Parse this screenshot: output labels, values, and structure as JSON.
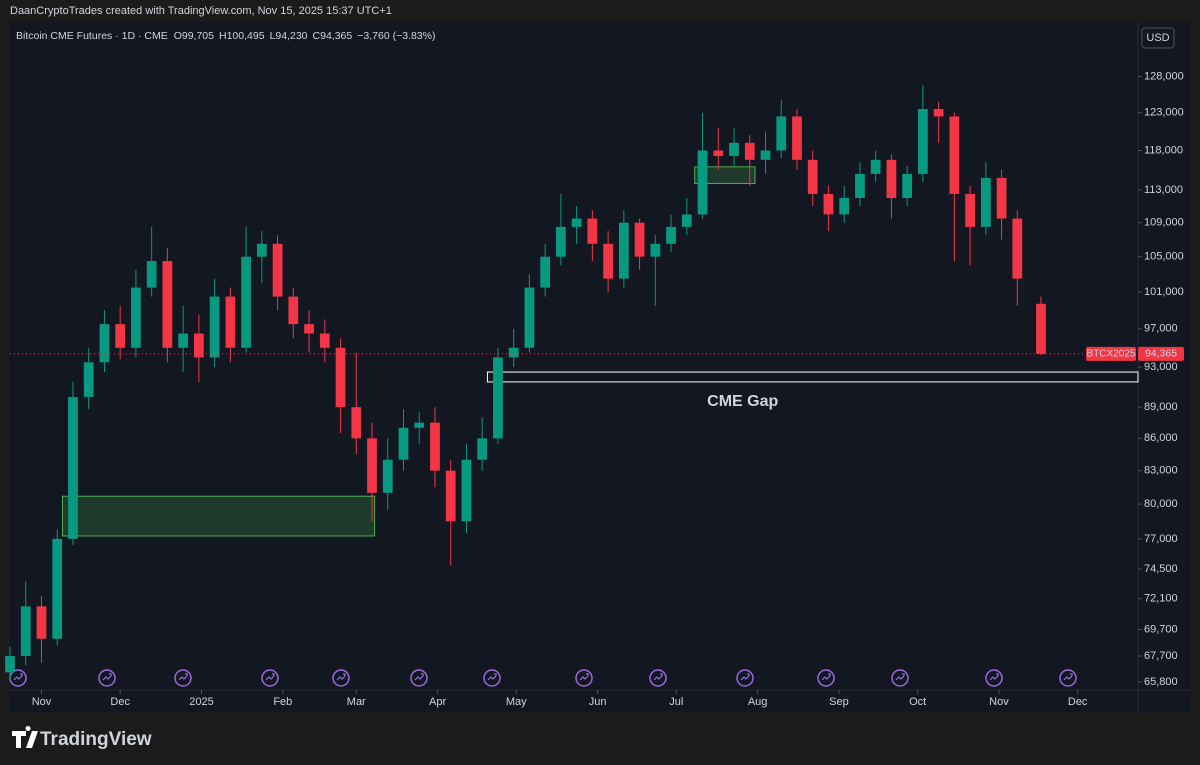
{
  "header": "DaanCryptoTrades created with TradingView.com, Nov 15, 2025 15:37 UTC+1",
  "brand": "TradingView",
  "chart_data": {
    "type": "candlestick",
    "symbol": "Bitcoin CME Futures · 1D · CME",
    "currency": "USD",
    "legend": {
      "open": {
        "prefix": "O",
        "value": 99705,
        "label": "99,705"
      },
      "high": {
        "prefix": "H",
        "value": 100495,
        "label": "100,495"
      },
      "low": {
        "prefix": "L",
        "value": 94230,
        "label": "94,230"
      },
      "close": {
        "prefix": "C",
        "value": 94365,
        "label": "94,365"
      },
      "change": {
        "value": -3760,
        "label": "−3,760 (−3.83%)"
      }
    },
    "last_price": {
      "name": "BTCX2025",
      "value": 94365,
      "label": "94,365"
    },
    "up_color": "#089981",
    "down_color": "#f23645",
    "log_scale": true,
    "grid": false,
    "xlim": [
      0,
      430
    ],
    "ylim": [
      65220,
      135900
    ],
    "xticks": [
      {
        "value": 12,
        "label": "Nov"
      },
      {
        "value": 42,
        "label": "Dec"
      },
      {
        "value": 73,
        "label": "2025"
      },
      {
        "value": 104,
        "label": "Feb"
      },
      {
        "value": 132,
        "label": "Mar"
      },
      {
        "value": 163,
        "label": "Apr"
      },
      {
        "value": 193,
        "label": "May"
      },
      {
        "value": 224,
        "label": "Jun"
      },
      {
        "value": 254,
        "label": "Jul"
      },
      {
        "value": 285,
        "label": "Aug"
      },
      {
        "value": 316,
        "label": "Sep"
      },
      {
        "value": 346,
        "label": "Oct"
      },
      {
        "value": 377,
        "label": "Nov"
      },
      {
        "value": 407,
        "label": "Dec"
      }
    ],
    "yticks": [
      {
        "value": 128000,
        "label": "128,000"
      },
      {
        "value": 123000,
        "label": "123,000"
      },
      {
        "value": 118000,
        "label": "118,000"
      },
      {
        "value": 113000,
        "label": "113,000"
      },
      {
        "value": 109000,
        "label": "109,000"
      },
      {
        "value": 105000,
        "label": "105,000"
      },
      {
        "value": 101000,
        "label": "101,000"
      },
      {
        "value": 97000,
        "label": "97,000"
      },
      {
        "value": 93000,
        "label": "93,000"
      },
      {
        "value": 89000,
        "label": "89,000"
      },
      {
        "value": 86000,
        "label": "86,000"
      },
      {
        "value": 83000,
        "label": "83,000"
      },
      {
        "value": 80000,
        "label": "80,000"
      },
      {
        "value": 77000,
        "label": "77,000"
      },
      {
        "value": 74500,
        "label": "74,500"
      },
      {
        "value": 72100,
        "label": "72,100"
      },
      {
        "value": 69700,
        "label": "69,700"
      },
      {
        "value": 67700,
        "label": "67,700"
      },
      {
        "value": 65800,
        "label": "65,800"
      }
    ],
    "ohlc": [
      [
        0,
        66500,
        68400,
        65900,
        67700
      ],
      [
        6,
        67700,
        73500,
        67000,
        71500
      ],
      [
        12,
        71500,
        72300,
        67200,
        69000
      ],
      [
        18,
        69000,
        77800,
        68500,
        77000
      ],
      [
        24,
        77000,
        91500,
        76500,
        90000
      ],
      [
        30,
        90000,
        95000,
        88800,
        93500
      ],
      [
        36,
        93500,
        99000,
        92500,
        97500
      ],
      [
        42,
        97500,
        99500,
        93800,
        95000
      ],
      [
        48,
        95000,
        103500,
        94000,
        101500
      ],
      [
        54,
        101500,
        108500,
        100500,
        104500
      ],
      [
        60,
        104500,
        106000,
        93500,
        95000
      ],
      [
        66,
        95000,
        99500,
        92500,
        96500
      ],
      [
        72,
        96500,
        98500,
        91500,
        94000
      ],
      [
        78,
        94000,
        102500,
        93000,
        100500
      ],
      [
        84,
        100500,
        101500,
        93500,
        95000
      ],
      [
        90,
        95000,
        108500,
        94500,
        105000
      ],
      [
        96,
        105000,
        108000,
        102000,
        106500
      ],
      [
        102,
        106500,
        107500,
        99000,
        100500
      ],
      [
        108,
        100500,
        101500,
        96000,
        97500
      ],
      [
        114,
        97500,
        99000,
        94500,
        96500
      ],
      [
        120,
        96500,
        98000,
        93500,
        95000
      ],
      [
        126,
        95000,
        96000,
        86500,
        89000
      ],
      [
        132,
        89000,
        94500,
        84500,
        86000
      ],
      [
        138,
        86000,
        87500,
        78500,
        81000
      ],
      [
        144,
        81000,
        86000,
        79500,
        84000
      ],
      [
        150,
        84000,
        88800,
        83000,
        87000
      ],
      [
        156,
        87000,
        88500,
        85500,
        87500
      ],
      [
        162,
        87500,
        89000,
        81500,
        83000
      ],
      [
        168,
        83000,
        84000,
        74800,
        78500
      ],
      [
        174,
        78500,
        85500,
        77500,
        84000
      ],
      [
        180,
        84000,
        88000,
        83000,
        86000
      ],
      [
        186,
        86000,
        95000,
        85500,
        94000
      ],
      [
        192,
        94000,
        97000,
        93000,
        95000
      ],
      [
        198,
        95000,
        103000,
        94500,
        101500
      ],
      [
        204,
        101500,
        106500,
        100500,
        105000
      ],
      [
        210,
        105000,
        112500,
        104000,
        108500
      ],
      [
        216,
        108500,
        111000,
        106500,
        109500
      ],
      [
        222,
        109500,
        110500,
        104500,
        106500
      ],
      [
        228,
        106500,
        108000,
        101000,
        102500
      ],
      [
        234,
        102500,
        110500,
        101500,
        109000
      ],
      [
        240,
        109000,
        109500,
        103500,
        105000
      ],
      [
        246,
        105000,
        107500,
        99500,
        106500
      ],
      [
        252,
        106500,
        110000,
        105500,
        108500
      ],
      [
        258,
        108500,
        112000,
        107500,
        110000
      ],
      [
        264,
        110000,
        123000,
        109500,
        118000
      ],
      [
        270,
        118000,
        121000,
        115500,
        117300
      ],
      [
        276,
        117300,
        121000,
        116000,
        119000
      ],
      [
        282,
        119000,
        120000,
        113500,
        116800
      ],
      [
        288,
        116800,
        120500,
        115000,
        118000
      ],
      [
        294,
        118000,
        124800,
        117000,
        122500
      ],
      [
        300,
        122500,
        123500,
        115500,
        116800
      ],
      [
        306,
        116800,
        118000,
        111000,
        112500
      ],
      [
        312,
        112500,
        113500,
        108000,
        110000
      ],
      [
        318,
        110000,
        113500,
        109000,
        112000
      ],
      [
        324,
        112000,
        116500,
        111000,
        115000
      ],
      [
        330,
        115000,
        118000,
        114000,
        116800
      ],
      [
        336,
        116800,
        117500,
        109500,
        112000
      ],
      [
        342,
        112000,
        116000,
        111000,
        115000
      ],
      [
        348,
        115000,
        126800,
        114000,
        123500
      ],
      [
        354,
        123500,
        124500,
        119000,
        122500
      ],
      [
        360,
        122500,
        123000,
        104500,
        112500
      ],
      [
        366,
        112500,
        113500,
        104000,
        108500
      ],
      [
        372,
        108500,
        116500,
        107500,
        114500
      ],
      [
        378,
        114500,
        115500,
        107000,
        109500
      ],
      [
        384,
        109500,
        110500,
        99500,
        102500
      ],
      [
        393,
        99705,
        100495,
        94230,
        94365
      ]
    ],
    "zones": [
      {
        "x": [
          20,
          139
        ],
        "y": [
          77250,
          80700
        ],
        "fill": "#1f3a2a",
        "stroke": "#4caf50"
      },
      {
        "x": [
          261,
          284
        ],
        "y": [
          113800,
          115900
        ],
        "fill": "#1f3a2a",
        "stroke": "#4caf50"
      },
      {
        "x": [
          182,
          430
        ],
        "y": [
          91500,
          92500
        ],
        "fill": "#131722",
        "stroke": "#ffffff",
        "label": "CME Gap"
      }
    ]
  }
}
